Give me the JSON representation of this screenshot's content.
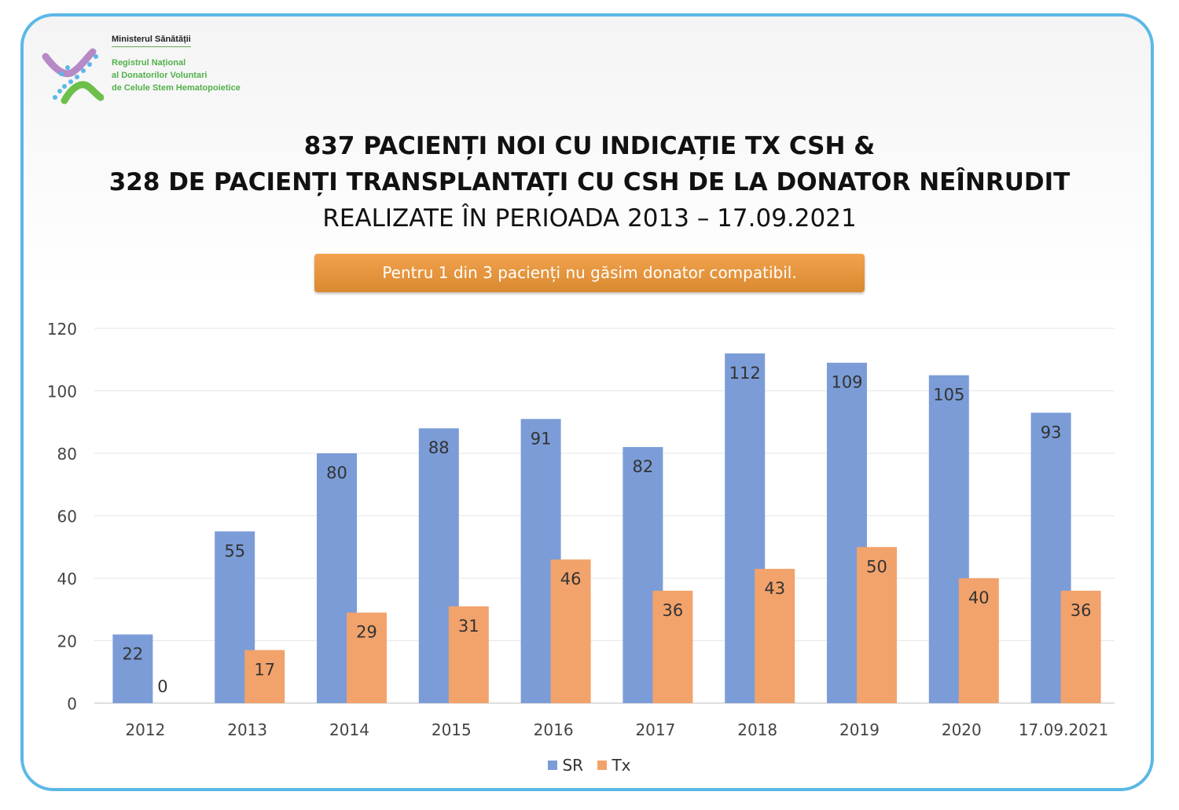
{
  "header": {
    "ministry": "Ministerul Sănătății",
    "registry_lines": [
      "Registrul Național",
      "al Donatorilor Voluntari",
      "de Celule Stem Hematopoietice"
    ],
    "title_line1": "837 PACIENȚI NOI CU INDICAȚIE TX CSH &",
    "title_line2": "328 DE PACIENȚI TRANSPLANTAȚI CU CSH DE LA DONATOR NEÎNRUDIT",
    "title_line3": "REALIZATE ÎN PERIOADA 2013 – 17.09.2021",
    "banner": "Pentru 1 din 3 pacienți nu găsim donator compatibil."
  },
  "colors": {
    "frame": "#5bb8e6",
    "series_sr": "#7b9cd7",
    "series_tx": "#f2a26b",
    "banner": "#e6963a",
    "logo_purple": "#b58ac6",
    "logo_green": "#6cc04a",
    "logo_blue": "#5bb8e6"
  },
  "chart_data": {
    "type": "bar",
    "title": "",
    "xlabel": "",
    "ylabel": "",
    "ylim": [
      0,
      120
    ],
    "yticks": [
      0,
      20,
      40,
      60,
      80,
      100,
      120
    ],
    "grid": true,
    "legend_position": "bottom",
    "categories": [
      "2012",
      "2013",
      "2014",
      "2015",
      "2016",
      "2017",
      "2018",
      "2019",
      "2020",
      "17.09.2021"
    ],
    "series": [
      {
        "name": "SR",
        "values": [
          22,
          55,
          80,
          88,
          91,
          82,
          112,
          109,
          105,
          93
        ]
      },
      {
        "name": "Tx",
        "values": [
          0,
          17,
          29,
          31,
          46,
          36,
          43,
          50,
          40,
          36
        ]
      }
    ]
  }
}
